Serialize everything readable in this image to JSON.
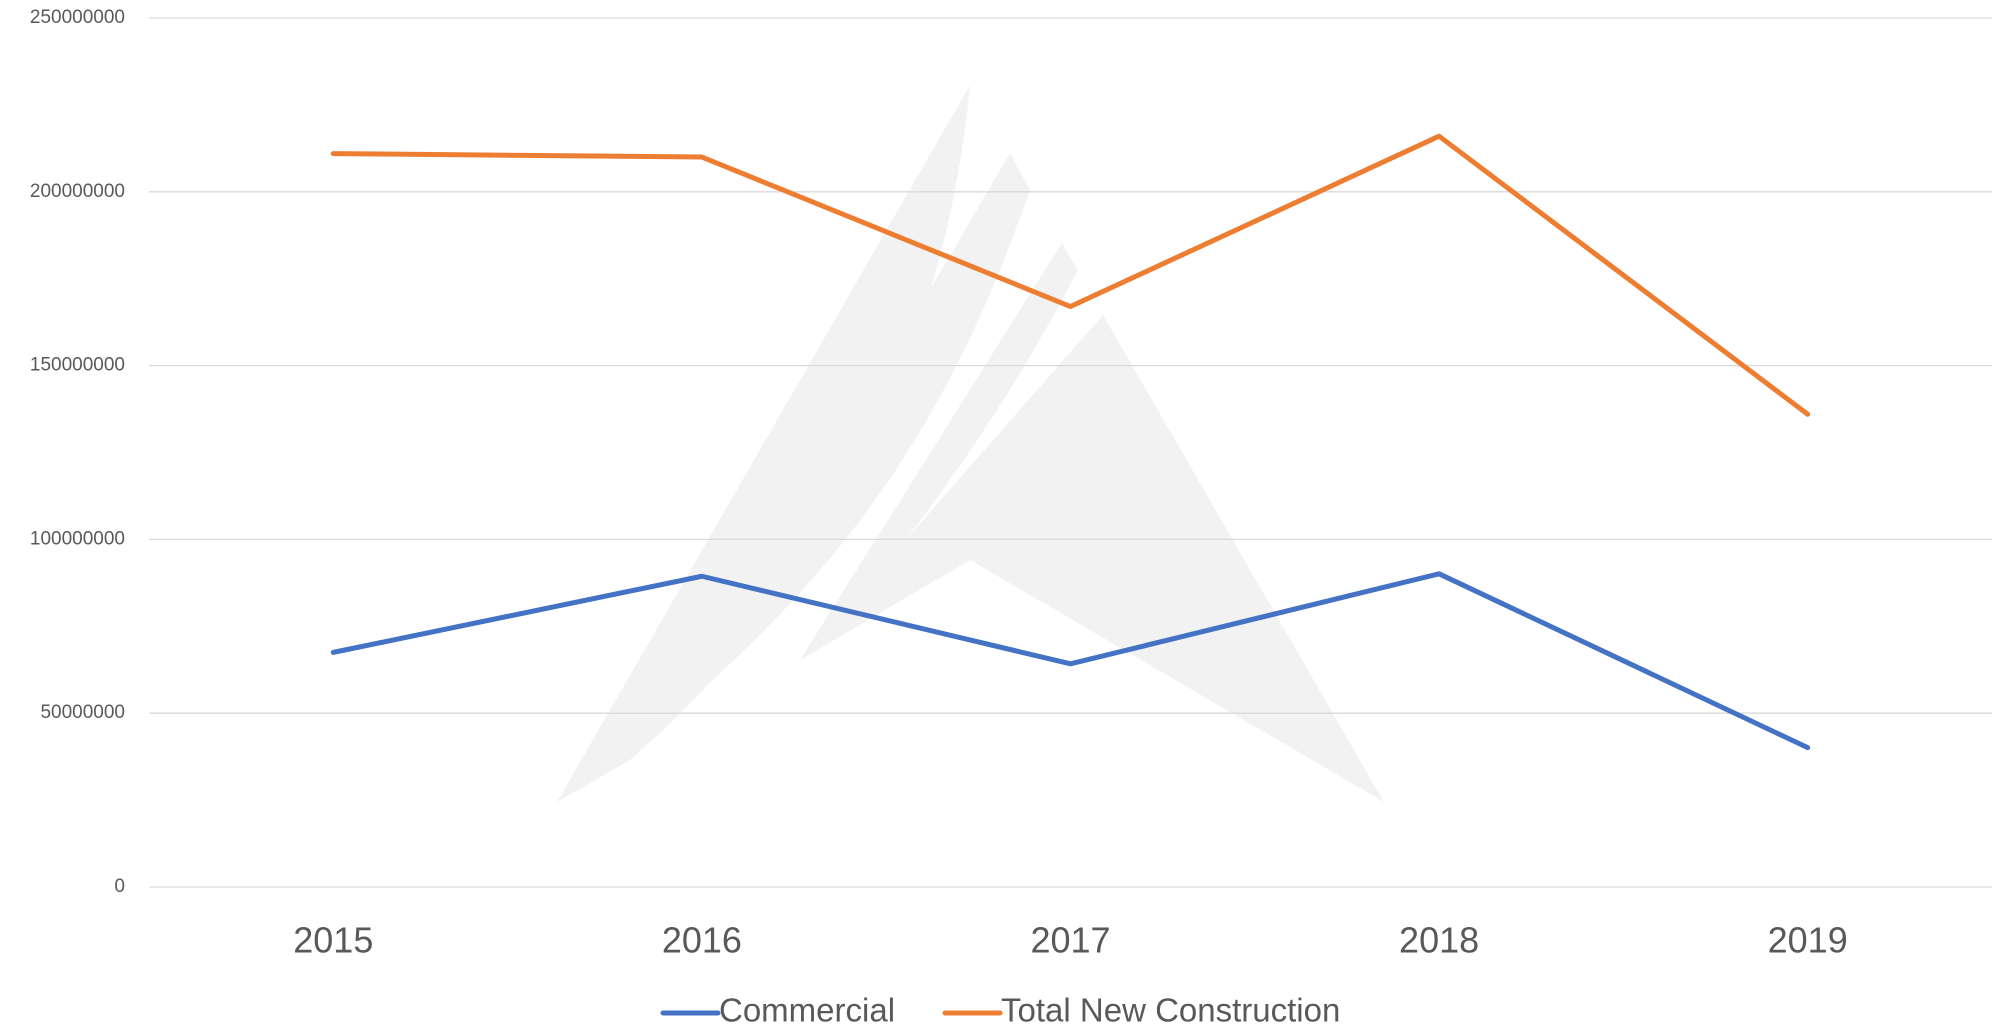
{
  "chart_data": {
    "type": "line",
    "categories": [
      "2015",
      "2016",
      "2017",
      "2018",
      "2019"
    ],
    "series": [
      {
        "name": "Commercial",
        "color": "#4472c4",
        "values": [
          67500000,
          89400000,
          64200000,
          90100000,
          40100000
        ]
      },
      {
        "name": "Total New Construction",
        "color": "#ed7d31",
        "values": [
          211000000,
          210000000,
          167000000,
          216000000,
          136000000
        ]
      }
    ],
    "ylim": [
      0,
      250000000
    ],
    "yticks": [
      0,
      50000000,
      100000000,
      150000000,
      200000000,
      250000000
    ],
    "grid": true,
    "legend": "bottom"
  }
}
